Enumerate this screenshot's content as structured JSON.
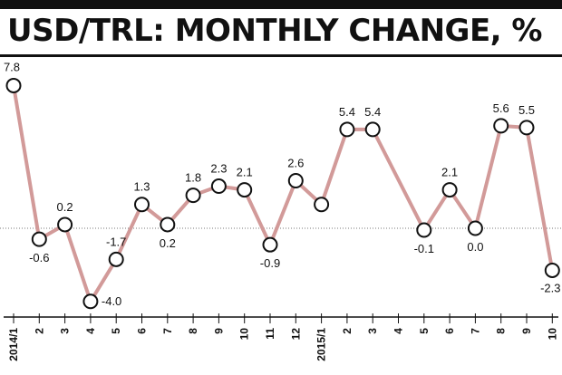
{
  "title": "USD/TRL: MONTHLY CHANGE, %",
  "colors": {
    "line": "#d29a99",
    "year_label": "#c0262d",
    "text": "#111111"
  },
  "chart_data": {
    "type": "line",
    "title": "USD/TRL: MONTHLY CHANGE, %",
    "xlabel": "",
    "ylabel": "",
    "x": [
      "2014/1",
      "2",
      "3",
      "4",
      "5",
      "6",
      "7",
      "8",
      "9",
      "10",
      "11",
      "12",
      "2015/1",
      "2",
      "3",
      "4",
      "5",
      "6",
      "7",
      "8",
      "9",
      "10"
    ],
    "series": [
      {
        "values": [
          7.8,
          -0.6,
          0.2,
          -4.0,
          -1.7,
          1.3,
          0.2,
          1.8,
          2.3,
          2.1,
          -0.9,
          2.6,
          1.3,
          5.4,
          5.4,
          null,
          -0.1,
          2.1,
          0.0,
          5.6,
          5.5,
          -2.3
        ]
      }
    ],
    "data_labels": [
      "7.8",
      "-0.6",
      "0.2",
      "-4.0",
      "-1.7",
      "1.3",
      "0.2",
      "1.8",
      "2.3",
      "2.1",
      "-0.9",
      "2.6",
      "",
      "5.4",
      "5.4",
      "",
      "-0.1",
      "2.1",
      "0.0",
      "5.6",
      "5.5",
      "-2.3"
    ],
    "ylim": [
      -5,
      9
    ],
    "zero_line": "dotted",
    "grid": false,
    "legend": "none"
  }
}
